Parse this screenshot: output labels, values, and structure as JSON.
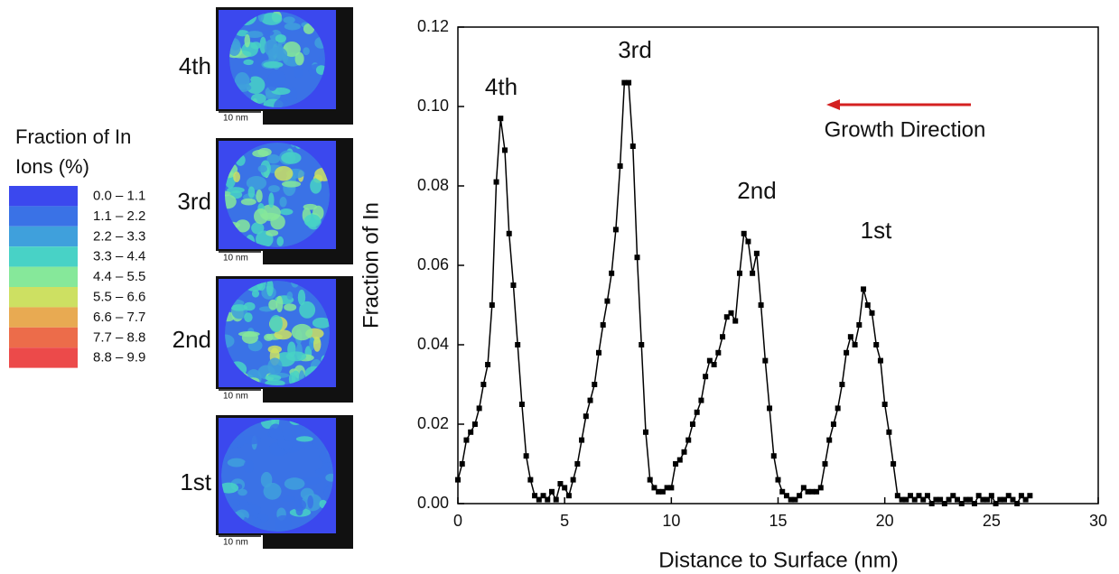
{
  "legend": {
    "title": [
      "Fraction of In",
      "Ions (%)"
    ],
    "items": [
      {
        "label": "0.0 – 1.1",
        "color": "#3b48ee"
      },
      {
        "label": "1.1 – 2.2",
        "color": "#3a72e6"
      },
      {
        "label": "2.2 – 3.3",
        "color": "#3fa0dc"
      },
      {
        "label": "3.3 – 4.4",
        "color": "#48d2c6"
      },
      {
        "label": "4.4 – 5.5",
        "color": "#86e89a"
      },
      {
        "label": "5.5 – 6.6",
        "color": "#cde062"
      },
      {
        "label": "6.6 – 7.7",
        "color": "#e8aa52"
      },
      {
        "label": "7.7 – 8.8",
        "color": "#ec6c4a"
      },
      {
        "label": "8.8 – 9.9",
        "color": "#ec4a4a"
      }
    ]
  },
  "maps": [
    {
      "label": "4th",
      "scale": "10 nm"
    },
    {
      "label": "3rd",
      "scale": "10 nm"
    },
    {
      "label": "2nd",
      "scale": "10 nm"
    },
    {
      "label": "1st",
      "scale": "10 nm"
    }
  ],
  "chart_data": {
    "type": "line",
    "xlabel": "Distance to Surface (nm)",
    "ylabel": "Fraction of In",
    "color": "#000000",
    "annotations": [
      "4th",
      "3rd",
      "2nd",
      "1st",
      "Growth Direction"
    ],
    "arrow_color": "#d42020",
    "xlim": [
      0,
      30
    ],
    "xticks": [
      0,
      5,
      10,
      15,
      20,
      25,
      30
    ],
    "ylim": [
      0,
      0.12
    ],
    "yticks": [
      {
        "value": 0,
        "label": "0.00"
      },
      {
        "value": 0.02,
        "label": "0.02"
      },
      {
        "value": 0.04,
        "label": "0.04"
      },
      {
        "value": 0.06,
        "label": "0.06"
      },
      {
        "value": 0.08,
        "label": "0.08"
      },
      {
        "value": 0.1,
        "label": "0.10"
      },
      {
        "value": 0.12,
        "label": "0.12"
      }
    ],
    "x": [
      0,
      0.2,
      0.4,
      0.6,
      0.8,
      1.0,
      1.2,
      1.4,
      1.6,
      1.8,
      2.0,
      2.2,
      2.4,
      2.6,
      2.8,
      3.0,
      3.2,
      3.4,
      3.6,
      3.8,
      4.0,
      4.2,
      4.4,
      4.6,
      4.8,
      5.0,
      5.2,
      5.4,
      5.6,
      5.8,
      6.0,
      6.2,
      6.4,
      6.6,
      6.8,
      7.0,
      7.2,
      7.4,
      7.6,
      7.8,
      8.0,
      8.2,
      8.4,
      8.6,
      8.8,
      9.0,
      9.2,
      9.4,
      9.6,
      9.8,
      10.0,
      10.2,
      10.4,
      10.6,
      10.8,
      11.0,
      11.2,
      11.4,
      11.6,
      11.8,
      12.0,
      12.2,
      12.4,
      12.6,
      12.8,
      13.0,
      13.2,
      13.4,
      13.6,
      13.8,
      14.0,
      14.2,
      14.4,
      14.6,
      14.8,
      15.0,
      15.2,
      15.4,
      15.6,
      15.8,
      16.0,
      16.2,
      16.4,
      16.6,
      16.8,
      17.0,
      17.2,
      17.4,
      17.6,
      17.8,
      18.0,
      18.2,
      18.4,
      18.6,
      18.8,
      19.0,
      19.2,
      19.4,
      19.6,
      19.8,
      20.0,
      20.2,
      20.4,
      20.6,
      20.8,
      21.0,
      21.2,
      21.4,
      21.6,
      21.8,
      22.0,
      22.2,
      22.4,
      22.6,
      22.8,
      23.0,
      23.2,
      23.4,
      23.6,
      23.8,
      24.0,
      24.2,
      24.4,
      24.6,
      24.8,
      25.0,
      25.2,
      25.4,
      25.6,
      25.8,
      26.0,
      26.2,
      26.4,
      26.6,
      26.8
    ],
    "values": [
      0.006,
      0.01,
      0.016,
      0.018,
      0.02,
      0.024,
      0.03,
      0.035,
      0.05,
      0.081,
      0.097,
      0.089,
      0.068,
      0.055,
      0.04,
      0.025,
      0.012,
      0.006,
      0.002,
      0.001,
      0.002,
      0.001,
      0.003,
      0.001,
      0.005,
      0.004,
      0.002,
      0.006,
      0.01,
      0.016,
      0.022,
      0.026,
      0.03,
      0.038,
      0.045,
      0.051,
      0.058,
      0.069,
      0.085,
      0.106,
      0.106,
      0.09,
      0.062,
      0.04,
      0.018,
      0.006,
      0.004,
      0.003,
      0.003,
      0.004,
      0.004,
      0.01,
      0.011,
      0.013,
      0.016,
      0.02,
      0.023,
      0.026,
      0.032,
      0.036,
      0.035,
      0.038,
      0.042,
      0.047,
      0.048,
      0.046,
      0.058,
      0.068,
      0.066,
      0.058,
      0.063,
      0.05,
      0.036,
      0.024,
      0.012,
      0.006,
      0.003,
      0.002,
      0.001,
      0.001,
      0.002,
      0.004,
      0.003,
      0.003,
      0.003,
      0.004,
      0.01,
      0.016,
      0.02,
      0.024,
      0.03,
      0.038,
      0.042,
      0.04,
      0.045,
      0.054,
      0.05,
      0.048,
      0.04,
      0.036,
      0.025,
      0.018,
      0.01,
      0.002,
      0.001,
      0.001,
      0.002,
      0.001,
      0.002,
      0.001,
      0.002,
      0.0,
      0.001,
      0.001,
      0.0,
      0.001,
      0.002,
      0.001,
      0.0,
      0.001,
      0.001,
      0.0,
      0.002,
      0.001,
      0.001,
      0.002,
      0.0,
      0.001,
      0.001,
      0.002,
      0.001,
      0.0,
      0.002,
      0.001,
      0.002
    ]
  }
}
